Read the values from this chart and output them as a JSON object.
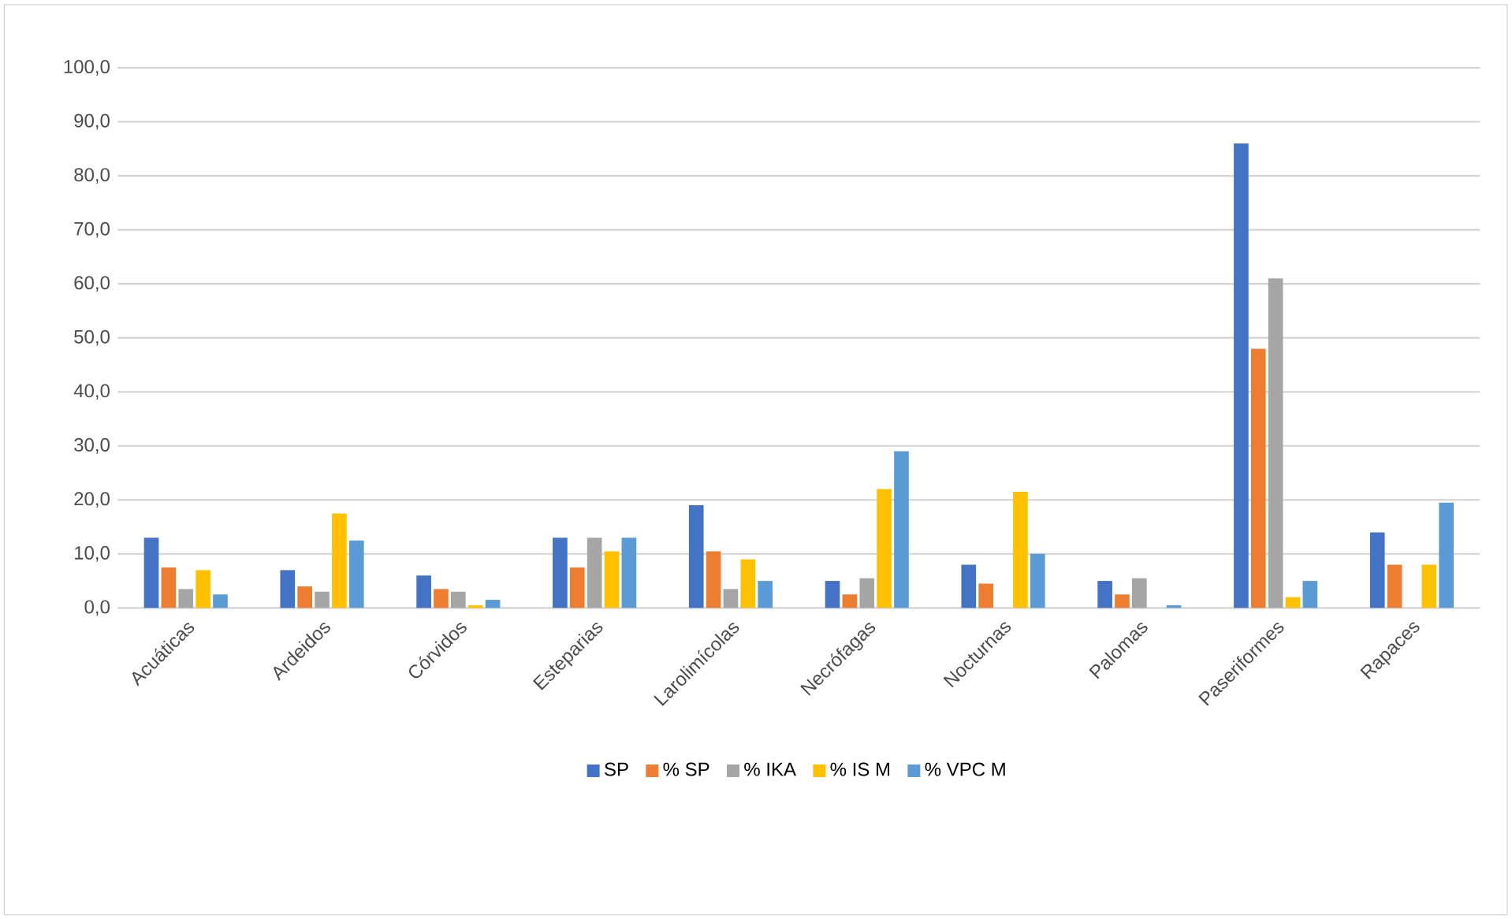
{
  "chart_data": {
    "type": "bar",
    "categories": [
      "Acuáticas",
      "Ardeidos",
      "Córvidos",
      "Esteparias",
      "Larolimícolas",
      "Necrófagas",
      "Nocturnas",
      "Palomas",
      "Paseriformes",
      "Rapaces"
    ],
    "series": [
      {
        "name": "SP",
        "color": "#4472c4",
        "values": [
          13,
          7,
          6,
          13,
          19,
          5,
          8,
          5,
          86,
          14
        ]
      },
      {
        "name": "% SP",
        "color": "#ed7d31",
        "values": [
          7.5,
          4,
          3.5,
          7.5,
          10.5,
          2.5,
          4.5,
          2.5,
          48,
          8
        ]
      },
      {
        "name": "% IKA",
        "color": "#a5a5a5",
        "values": [
          3.5,
          3,
          3,
          13,
          3.5,
          5.5,
          0,
          5.5,
          61,
          0
        ]
      },
      {
        "name": "% IS M",
        "color": "#ffc000",
        "values": [
          7,
          17.5,
          0.5,
          10.5,
          9,
          22,
          21.5,
          0,
          2,
          8
        ]
      },
      {
        "name": "% VPC M",
        "color": "#5b9bd5",
        "values": [
          2.5,
          12.5,
          1.5,
          13,
          5,
          29,
          10,
          0.5,
          5,
          19.5
        ]
      }
    ],
    "ylim": [
      0,
      100
    ],
    "yticks": [
      {
        "value": 0,
        "label": "0,0"
      },
      {
        "value": 10,
        "label": "10,0"
      },
      {
        "value": 20,
        "label": "20,0"
      },
      {
        "value": 30,
        "label": "30,0"
      },
      {
        "value": 40,
        "label": "40,0"
      },
      {
        "value": 50,
        "label": "50,0"
      },
      {
        "value": 60,
        "label": "60,0"
      },
      {
        "value": 70,
        "label": "70,0"
      },
      {
        "value": 80,
        "label": "80,0"
      },
      {
        "value": 90,
        "label": "90,0"
      },
      {
        "value": 100,
        "label": "100,0"
      }
    ],
    "grid": "y",
    "legend": "bottom"
  }
}
